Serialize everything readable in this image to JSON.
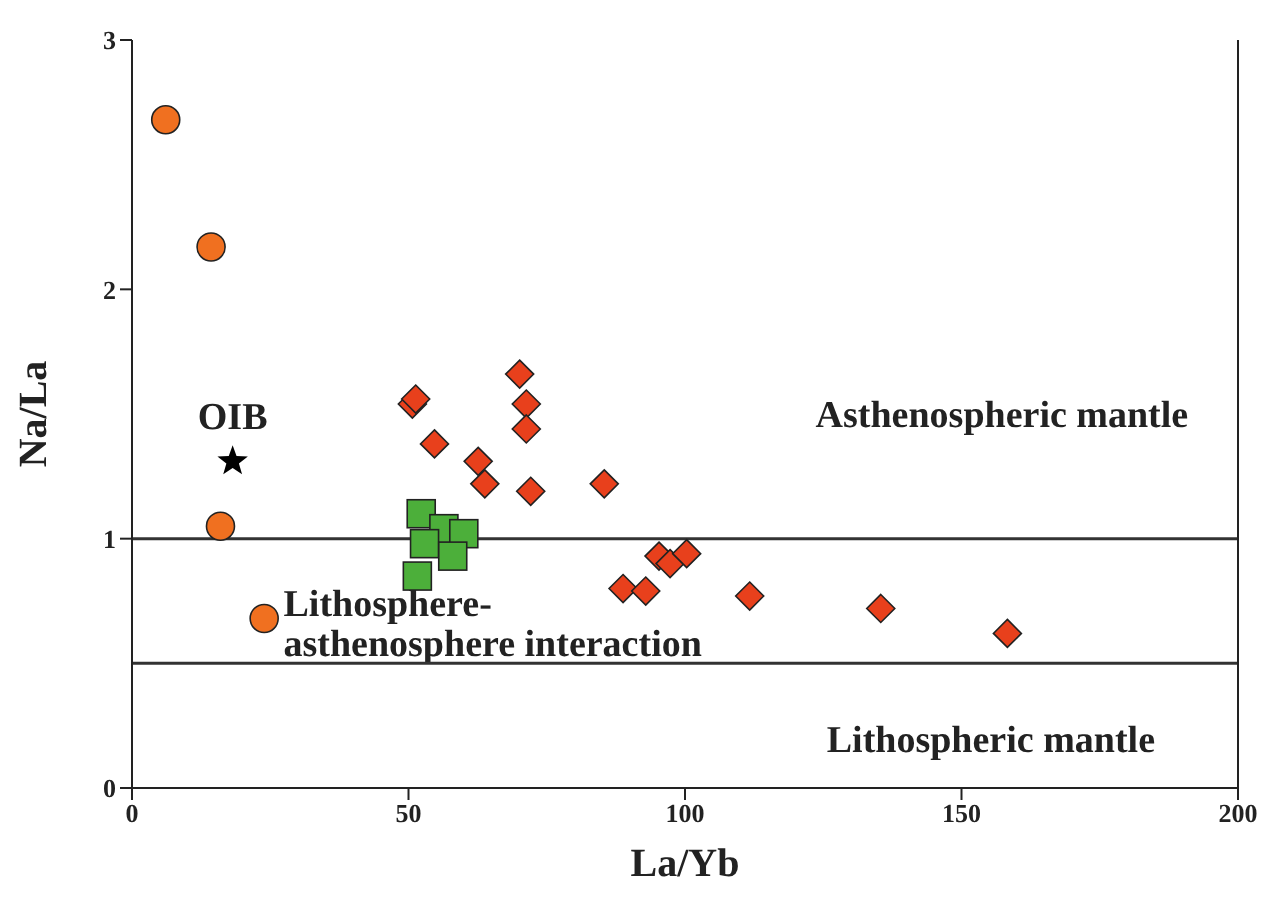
{
  "chart_data": {
    "type": "scatter",
    "xlabel": "La/Yb",
    "ylabel": "Na/La",
    "xlim": [
      0,
      200
    ],
    "xticks": [
      0,
      50,
      100,
      150,
      200
    ],
    "ylim": [
      0,
      3
    ],
    "yticks": [
      0,
      1,
      2,
      3
    ],
    "series": [
      {
        "color": "#f07020",
        "marker": "circle",
        "x": [
          6.1,
          14.3,
          16,
          23.9
        ],
        "values": [
          2.68,
          2.17,
          1.05,
          0.68
        ]
      },
      {
        "name": "OIB",
        "color": "#000000",
        "marker": "star",
        "x": [
          18.2
        ],
        "values": [
          1.31
        ]
      },
      {
        "color": "#4caf3a",
        "marker": "square",
        "x": [
          52.3,
          56.4,
          52.9,
          60.0,
          58.0,
          51.6
        ],
        "values": [
          1.1,
          1.04,
          0.98,
          1.02,
          0.93,
          0.85
        ]
      },
      {
        "color": "#e8401c",
        "marker": "diamond",
        "x": [
          50.7,
          51.3,
          70.1,
          71.3,
          71.3,
          54.7,
          62.6,
          63.8,
          72.1,
          85.4,
          95.3,
          97.3,
          100.3,
          88.8,
          92.9,
          111.7,
          135.4,
          158.3
        ],
        "values": [
          1.54,
          1.56,
          1.66,
          1.54,
          1.44,
          1.38,
          1.31,
          1.22,
          1.19,
          1.22,
          0.93,
          0.9,
          0.94,
          0.8,
          0.79,
          0.77,
          0.72,
          0.62
        ]
      }
    ],
    "ref_lines": [
      {
        "axis": "y",
        "value": 1,
        "color": "#333333"
      },
      {
        "axis": "y",
        "value": 0.5,
        "color": "#333333"
      }
    ],
    "annotations": [
      "Asthenospheric mantle",
      "Lithosphere-\nasthenosphere interaction",
      "Lithospheric mantle"
    ]
  }
}
